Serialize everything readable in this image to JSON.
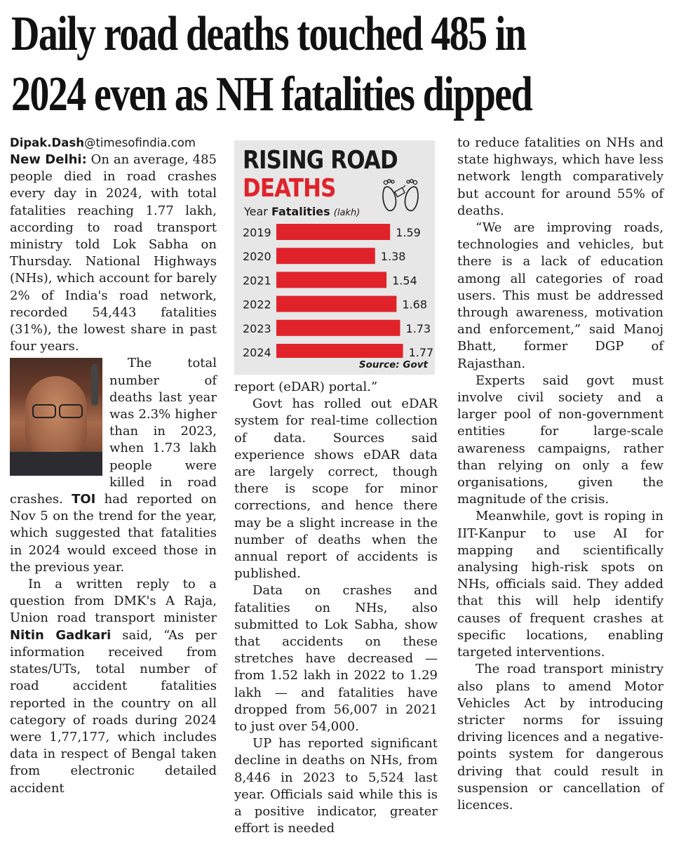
{
  "headline": {
    "line1": "Daily road deaths touched 485 in",
    "line2": "2024 even as NH fatalities dipped"
  },
  "byline": {
    "name": "Dipak.Dash",
    "domain": "@timesofindia.com"
  },
  "col1": {
    "dateline": "New Delhi:",
    "p1": "On an average, 485 people died in road crashes every day in 2024, with total fatalities reaching 1.77 lakh, according to road transport ministry told Lok Sabha on Thursday. National Highways (NHs), which account for barely 2% of India's road network, recorded 54,443 fatalities (31%), the lowest share in past four years.",
    "p2": "The total number of deaths last year was 2.3% higher than in 2023, when 1.73 lakh people were killed in road crashes.",
    "toi": "TOI",
    "p2b": " had reported on Nov 5 on the trend for the year, which suggested that fatalities in 2024 would exceed those in the previous year.",
    "p3a": "In a written reply to a question from DMK's A Raja, Union road transport minister ",
    "gadkari": "Nitin Gadkari",
    "p3b": " said, “As per information received from states/UTs, total number of road accident fatalities reported in the country on all category of roads during 2024 were 1,77,177, which includes data in respect of Bengal taken from electronic detailed accident"
  },
  "col2": {
    "p0": "report (eDAR) portal.”",
    "p1": "Govt has rolled out eDAR system for real-time collection of data. Sources said experience shows eDAR data are largely correct, though there is scope for minor corrections, and hence there may be a slight increase in the number of deaths when the annual report of accidents is published.",
    "p2": "Data on crashes and fatalities on NHs, also submitted to Lok Sabha, show that accidents on these stretches have decreased — from 1.52 lakh in 2022 to 1.29 lakh — and fatalities have dropped from 56,007 in 2021 to just over 54,000.",
    "p3": "UP has reported significant decline in deaths on NHs, from 8,446 in 2023 to 5,524 last year. Officials said while this is a positive indicator, greater effort is needed"
  },
  "col3": {
    "p0": "to reduce fatalities on NHs and state highways, which have less network length comparatively but account for around 55% of deaths.",
    "p1": "“We are improving roads, technologies and vehicles, but there is a lack of education among all categories of road users. This must be addressed through awareness, motivation and enforcement,” said Manoj Bhatt, former DGP of Rajasthan.",
    "p2": "Experts said govt must involve civil society and a larger pool of non-government entities for large-scale awareness campaigns, rather than relying on only a few organisations, given the magnitude of the crisis.",
    "p3": "Meanwhile, govt is roping in IIT-Kanpur to use AI for mapping and scientifically analysing high-risk spots on NHs, officials said. They added that this will help identify causes of frequent crashes at specific locations, enabling targeted interventions.",
    "p4": "The road transport ministry also plans to amend Motor Vehicles Act by introducing stricter norms for issuing driving licences and a negative-points system for dangerous driving that could result in suspension or cancellation of licences."
  },
  "chart_box": {
    "title1": "RISING ROAD",
    "title2": "DEATHS",
    "col_year": "Year",
    "col_fatalities": "Fatalities",
    "unit": "(lakh)",
    "source": "Source: Govt",
    "icon": "feet-with-tag-icon",
    "bar_color": "#e0232b"
  },
  "chart_data": {
    "type": "bar",
    "orientation": "horizontal",
    "categories": [
      "2019",
      "2020",
      "2021",
      "2022",
      "2023",
      "2024"
    ],
    "values": [
      1.59,
      1.38,
      1.54,
      1.68,
      1.73,
      1.77
    ],
    "title": "RISING ROAD DEATHS",
    "xlabel": "Fatalities (lakh)",
    "ylabel": "Year",
    "xlim": [
      0,
      1.77
    ],
    "data_labels": [
      "1.59",
      "1.38",
      "1.54",
      "1.68",
      "1.73",
      "1.77"
    ],
    "grid": false,
    "legend": "none"
  }
}
